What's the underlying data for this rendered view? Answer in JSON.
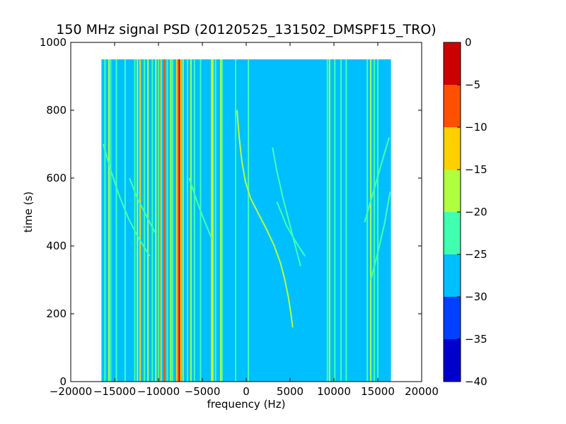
{
  "chart_data": {
    "type": "heatmap",
    "title": "150 MHz signal PSD (20120525_131502_DMSPF15_TRO)",
    "xlabel": "frequency (Hz)",
    "ylabel": "time (s)",
    "xlim": [
      -20000,
      20000
    ],
    "ylim": [
      0,
      1000
    ],
    "x_ticks": [
      -20000,
      -15000,
      -10000,
      -5000,
      0,
      5000,
      10000,
      15000,
      20000
    ],
    "y_ticks": [
      0,
      200,
      400,
      600,
      800,
      1000
    ],
    "x_tick_labels": [
      "−20000",
      "−15000",
      "−10000",
      "−5000",
      "0",
      "5000",
      "10000",
      "15000",
      "20000"
    ],
    "y_tick_labels": [
      "0",
      "200",
      "400",
      "600",
      "800",
      "1000"
    ],
    "data_extent": {
      "x": [
        -16500,
        16500
      ],
      "y": [
        0,
        950
      ]
    },
    "background_level": -27.5,
    "colorbar": {
      "levels": [
        -40,
        -35,
        -30,
        -25,
        -20,
        -15,
        -10,
        -5,
        0
      ],
      "tick_labels": [
        "−40",
        "−35",
        "−30",
        "−25",
        "−20",
        "−15",
        "−10",
        "−5",
        "0"
      ],
      "colors": [
        "#0000cd",
        "#0040ff",
        "#00bfff",
        "#40ffaf",
        "#b0ff40",
        "#ffd000",
        "#ff5000",
        "#cd0000"
      ]
    },
    "vertical_lines": [
      {
        "x": -16100,
        "level": -22.5
      },
      {
        "x": -15650,
        "level": -17.5
      },
      {
        "x": -15450,
        "level": -22.5
      },
      {
        "x": -14800,
        "level": -22.5
      },
      {
        "x": -13800,
        "level": -22.5
      },
      {
        "x": -12700,
        "level": -22.5
      },
      {
        "x": -12400,
        "level": -17.5
      },
      {
        "x": -12100,
        "level": -12.5
      },
      {
        "x": -11600,
        "level": -22.5
      },
      {
        "x": -11200,
        "level": -17.5
      },
      {
        "x": -10700,
        "level": -22.5
      },
      {
        "x": -10300,
        "level": -17.5
      },
      {
        "x": -10000,
        "level": -22.5
      },
      {
        "x": -9700,
        "level": -12.5
      },
      {
        "x": -9350,
        "level": -7.5
      },
      {
        "x": -9000,
        "level": -22.5
      },
      {
        "x": -8600,
        "level": -17.5
      },
      {
        "x": -8400,
        "level": -22.5
      },
      {
        "x": -7900,
        "level": -12.5
      },
      {
        "x": -7750,
        "level": -7.5
      },
      {
        "x": -7600,
        "level": -2.5
      },
      {
        "x": -7450,
        "level": -12.5
      },
      {
        "x": -7200,
        "level": -17.5
      },
      {
        "x": -6700,
        "level": -22.5
      },
      {
        "x": -6300,
        "level": -17.5
      },
      {
        "x": -5900,
        "level": -22.5
      },
      {
        "x": -5200,
        "level": -22.5
      },
      {
        "x": -3950,
        "level": -12.5
      },
      {
        "x": -3800,
        "level": -17.5
      },
      {
        "x": -3500,
        "level": -22.5
      },
      {
        "x": -2900,
        "level": -17.5
      },
      {
        "x": -2750,
        "level": -22.5
      },
      {
        "x": -1200,
        "level": -22.5
      },
      {
        "x": 250,
        "level": -22.5
      },
      {
        "x": 9250,
        "level": -22.5
      },
      {
        "x": 9500,
        "level": -17.5
      },
      {
        "x": 10100,
        "level": -22.5
      },
      {
        "x": 10800,
        "level": -22.5
      },
      {
        "x": 11400,
        "level": -22.5
      },
      {
        "x": 13800,
        "level": -22.5
      },
      {
        "x": 14200,
        "level": -17.5
      },
      {
        "x": 14600,
        "level": -22.5
      },
      {
        "x": 15000,
        "level": -22.5
      }
    ],
    "curves": [
      {
        "level": -17.5,
        "points": [
          [
            -1050,
            800
          ],
          [
            -800,
            720
          ],
          [
            -500,
            650
          ],
          [
            -100,
            590
          ],
          [
            500,
            540
          ],
          [
            1300,
            500
          ],
          [
            2300,
            450
          ],
          [
            3200,
            400
          ],
          [
            3900,
            350
          ],
          [
            4400,
            300
          ],
          [
            4800,
            250
          ],
          [
            5100,
            200
          ],
          [
            5300,
            160
          ]
        ]
      },
      {
        "level": -22.5,
        "points": [
          [
            3000,
            690
          ],
          [
            3500,
            620
          ],
          [
            4200,
            540
          ],
          [
            5000,
            460
          ],
          [
            5600,
            400
          ],
          [
            6200,
            340
          ]
        ]
      },
      {
        "level": -22.5,
        "points": [
          [
            3500,
            530
          ],
          [
            4600,
            460
          ],
          [
            5700,
            410
          ],
          [
            6700,
            370
          ]
        ]
      },
      {
        "level": -22.5,
        "points": [
          [
            -16300,
            700
          ],
          [
            -15400,
            620
          ],
          [
            -14500,
            550
          ],
          [
            -13400,
            480
          ],
          [
            -12200,
            420
          ],
          [
            -11000,
            370
          ]
        ]
      },
      {
        "level": -22.5,
        "points": [
          [
            -13300,
            600
          ],
          [
            -12400,
            540
          ],
          [
            -11400,
            490
          ],
          [
            -10400,
            440
          ]
        ]
      },
      {
        "level": -22.5,
        "points": [
          [
            -6500,
            600
          ],
          [
            -5600,
            530
          ],
          [
            -4700,
            470
          ],
          [
            -3900,
            420
          ]
        ]
      },
      {
        "level": -22.5,
        "points": [
          [
            14200,
            300
          ],
          [
            15000,
            380
          ],
          [
            15800,
            470
          ],
          [
            16400,
            560
          ]
        ]
      },
      {
        "level": -22.5,
        "points": [
          [
            13500,
            470
          ],
          [
            14500,
            560
          ],
          [
            15500,
            650
          ],
          [
            16300,
            720
          ]
        ]
      }
    ]
  }
}
